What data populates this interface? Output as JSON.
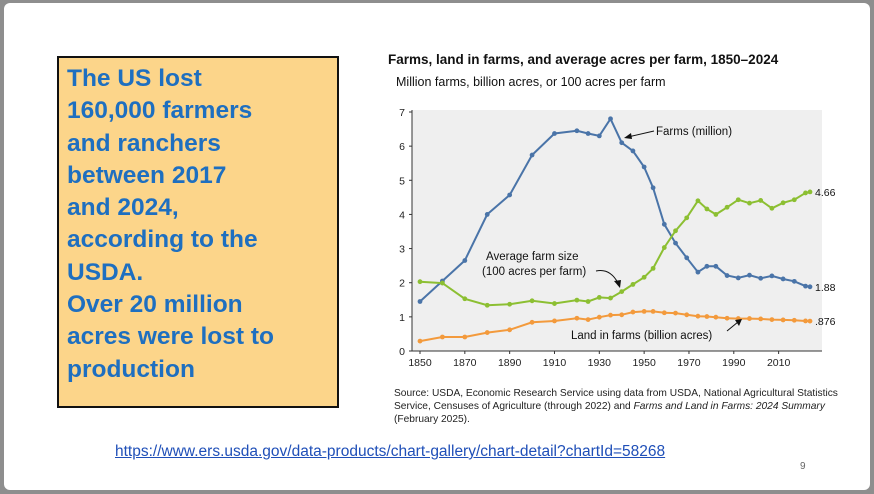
{
  "slide": {
    "callout_lines": [
      "The US lost",
      "160,000 farmers",
      "and ranchers",
      "between 2017",
      "and 2024,",
      "according to the",
      "USDA.",
      "Over 20 million",
      "acres were lost to",
      "production"
    ],
    "link": "https://www.ers.usda.gov/data-products/chart-gallery/chart-detail?chartId=58268",
    "page_number": "9",
    "source_text": {
      "part1": "Source: USDA, Economic Research Service using data from USDA, National Agricultural Statistics Service, Censuses of Agriculture (through 2022) and ",
      "italic": "Farms and Land in Farms: 2024 Summary",
      "part2": " (February 2025)."
    }
  },
  "chart_data": {
    "type": "line",
    "title": "Farms, land in farms, and average acres per farm, 1850–2024",
    "subtitle": "Million farms, billion acres, or 100 acres per farm",
    "xlim": [
      1850,
      2024
    ],
    "ylim": [
      0,
      7
    ],
    "x_ticks": [
      "1850",
      "1870",
      "1890",
      "1910",
      "1930",
      "1950",
      "1970",
      "1990",
      "2010"
    ],
    "y_ticks": [
      "0",
      "1",
      "2",
      "3",
      "4",
      "5",
      "6",
      "7"
    ],
    "grid": false,
    "series": [
      {
        "name": "Farms (million)",
        "color": "#4a74a8",
        "end_label": "1.88",
        "x": [
          1850,
          1860,
          1870,
          1880,
          1890,
          1900,
          1910,
          1920,
          1925,
          1930,
          1935,
          1940,
          1945,
          1950,
          1954,
          1959,
          1964,
          1969,
          1974,
          1978,
          1982,
          1987,
          1992,
          1997,
          2002,
          2007,
          2012,
          2017,
          2022,
          2024
        ],
        "y": [
          1.45,
          2.05,
          2.65,
          4.0,
          4.57,
          5.74,
          6.37,
          6.45,
          6.37,
          6.3,
          6.8,
          6.1,
          5.86,
          5.39,
          4.78,
          3.71,
          3.16,
          2.73,
          2.31,
          2.48,
          2.48,
          2.21,
          2.14,
          2.22,
          2.13,
          2.2,
          2.11,
          2.04,
          1.9,
          1.88
        ]
      },
      {
        "name": "Average farm size (100 acres per farm)",
        "color": "#8cbf32",
        "end_label": "4.66",
        "x": [
          1850,
          1860,
          1870,
          1880,
          1890,
          1900,
          1910,
          1920,
          1925,
          1930,
          1935,
          1940,
          1945,
          1950,
          1954,
          1959,
          1964,
          1969,
          1974,
          1978,
          1982,
          1987,
          1992,
          1997,
          2002,
          2007,
          2012,
          2017,
          2022,
          2024
        ],
        "y": [
          2.03,
          1.99,
          1.53,
          1.34,
          1.37,
          1.47,
          1.39,
          1.49,
          1.45,
          1.57,
          1.55,
          1.74,
          1.95,
          2.16,
          2.42,
          3.03,
          3.52,
          3.9,
          4.4,
          4.16,
          4.0,
          4.21,
          4.43,
          4.33,
          4.41,
          4.18,
          4.34,
          4.43,
          4.63,
          4.66
        ]
      },
      {
        "name": "Land in farms (billion acres)",
        "color": "#f39a3c",
        "end_label": ".876",
        "x": [
          1850,
          1860,
          1870,
          1880,
          1890,
          1900,
          1910,
          1920,
          1925,
          1930,
          1935,
          1940,
          1945,
          1950,
          1954,
          1959,
          1964,
          1969,
          1974,
          1978,
          1982,
          1987,
          1992,
          1997,
          2002,
          2007,
          2012,
          2017,
          2022,
          2024
        ],
        "y": [
          0.29,
          0.41,
          0.41,
          0.54,
          0.62,
          0.84,
          0.88,
          0.96,
          0.92,
          0.99,
          1.05,
          1.06,
          1.14,
          1.16,
          1.16,
          1.12,
          1.11,
          1.06,
          1.02,
          1.01,
          0.99,
          0.96,
          0.95,
          0.95,
          0.94,
          0.92,
          0.91,
          0.9,
          0.88,
          0.876
        ]
      }
    ],
    "annotations": [
      {
        "text": "Farms (million)"
      },
      {
        "text": "Average farm size"
      },
      {
        "text": "(100 acres per farm)"
      },
      {
        "text": "Land in farms (billion acres)"
      }
    ]
  }
}
